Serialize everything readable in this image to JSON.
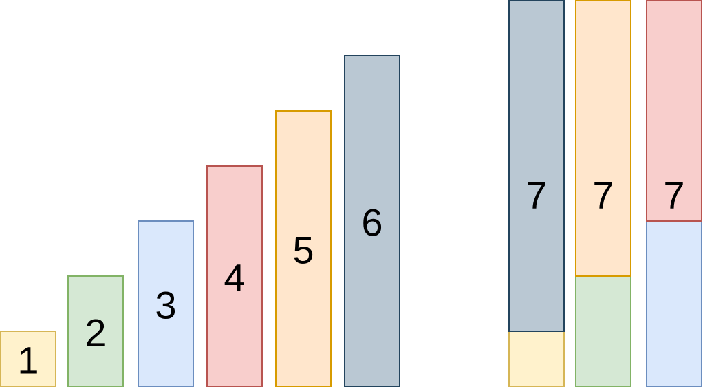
{
  "diagram": {
    "bars": [
      {
        "label": "1",
        "value": 1,
        "fill": "#fff2cc",
        "stroke": "#d6b656"
      },
      {
        "label": "2",
        "value": 2,
        "fill": "#d5e8d4",
        "stroke": "#82b366"
      },
      {
        "label": "3",
        "value": 3,
        "fill": "#dae8fc",
        "stroke": "#6c8ebf"
      },
      {
        "label": "4",
        "value": 4,
        "fill": "#f8cecc",
        "stroke": "#b85450"
      },
      {
        "label": "5",
        "value": 5,
        "fill": "#ffe6cc",
        "stroke": "#d79b00"
      },
      {
        "label": "6",
        "value": 6,
        "fill": "#bac8d3",
        "stroke": "#23445d"
      }
    ],
    "stacks": [
      {
        "label": "7",
        "segments": [
          {
            "value": 1,
            "fill": "#fff2cc",
            "stroke": "#d6b656"
          },
          {
            "value": 6,
            "fill": "#bac8d3",
            "stroke": "#23445d"
          }
        ]
      },
      {
        "label": "7",
        "segments": [
          {
            "value": 2,
            "fill": "#d5e8d4",
            "stroke": "#82b366"
          },
          {
            "value": 5,
            "fill": "#ffe6cc",
            "stroke": "#d79b00"
          }
        ]
      },
      {
        "label": "7",
        "segments": [
          {
            "value": 3,
            "fill": "#dae8fc",
            "stroke": "#6c8ebf"
          },
          {
            "value": 4,
            "fill": "#f8cecc",
            "stroke": "#b85450"
          }
        ]
      }
    ]
  }
}
